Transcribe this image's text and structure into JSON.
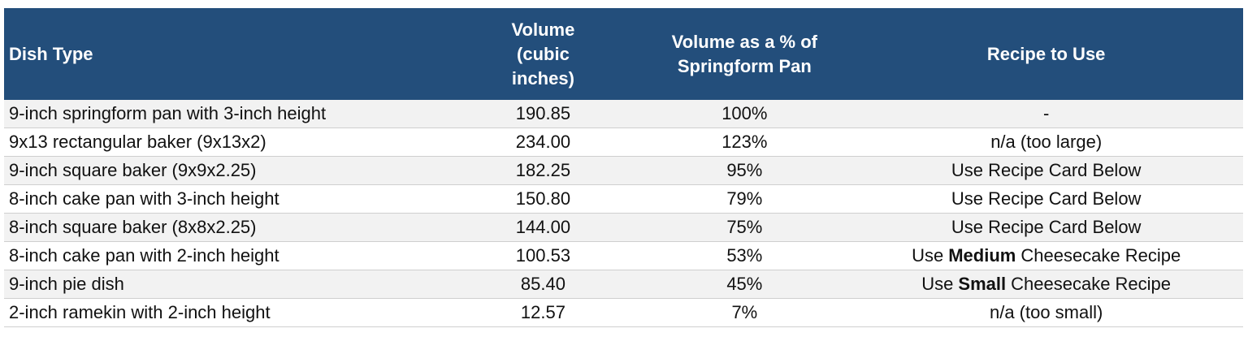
{
  "table": {
    "headers": [
      "Dish Type",
      "Volume (cubic inches)",
      "Volume as a % of Springform Pan",
      "Recipe to Use"
    ],
    "rows": [
      [
        "9-inch springform pan with 3-inch height",
        "190.85",
        "100%",
        "-"
      ],
      [
        "9x13 rectangular baker (9x13x2)",
        "234.00",
        "123%",
        "n/a (too large)"
      ],
      [
        "9-inch square baker (9x9x2.25)",
        "182.25",
        "95%",
        "Use Recipe Card Below"
      ],
      [
        "8-inch cake pan with 3-inch height",
        "150.80",
        "79%",
        "Use Recipe Card Below"
      ],
      [
        "8-inch square baker (8x8x2.25)",
        "144.00",
        "75%",
        "Use Recipe Card Below"
      ],
      [
        "8-inch cake pan with 2-inch height",
        "100.53",
        "53%",
        [
          {
            "text": "Use"
          },
          {
            "text": "Medium",
            "bold": true
          },
          {
            "text": "Cheesecake Recipe"
          }
        ]
      ],
      [
        "9-inch pie dish",
        "85.40",
        "45%",
        [
          {
            "text": "Use"
          },
          {
            "text": "Small",
            "bold": true
          },
          {
            "text": "Cheesecake Recipe"
          }
        ]
      ],
      [
        "2-inch ramekin with 2-inch height",
        "12.57",
        "7%",
        "n/a (too small)"
      ]
    ]
  }
}
